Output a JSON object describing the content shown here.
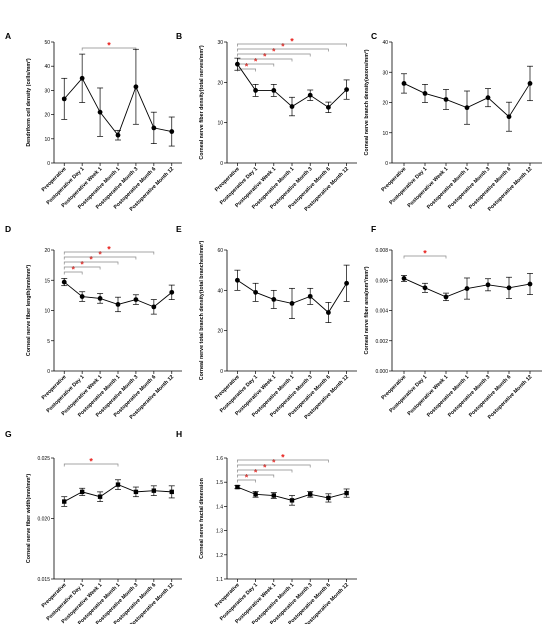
{
  "x_categories": [
    "Preoperative",
    "Postoperative Day 1",
    "Postoperative Week 1",
    "Postoperative Month 1",
    "Postoperative Month 3",
    "Postoperative Month 6",
    "Postoperative Month 12"
  ],
  "colors": {
    "line": "#000000",
    "bracket": "#888888",
    "star": "#e8231f"
  },
  "chart_data": [
    {
      "panel": "A",
      "type": "line",
      "ylabel": "Dendriform cell density (cells/mm²)",
      "ylim": [
        0,
        50
      ],
      "yticks": [
        "0",
        "10",
        "20",
        "30",
        "40",
        "50"
      ],
      "values": [
        26.5,
        35,
        21,
        11.5,
        31.5,
        14.5,
        13
      ],
      "err": [
        8.5,
        10,
        10,
        2,
        15.5,
        6.5,
        6
      ],
      "marker": "circle",
      "sig": [
        [
          1,
          4
        ]
      ]
    },
    {
      "panel": "B",
      "type": "line",
      "ylabel": "Corneal nerve fiber density(total nerves/mm²)",
      "ylim": [
        0,
        30
      ],
      "yticks": [
        "0",
        "10",
        "20",
        "30"
      ],
      "values": [
        24.5,
        18,
        18,
        14,
        16.8,
        13.8,
        18.2
      ],
      "err": [
        1.5,
        1.5,
        1.5,
        2.3,
        1.3,
        1.3,
        2.4
      ],
      "marker": "circle",
      "sig": [
        [
          0,
          1
        ],
        [
          0,
          2
        ],
        [
          0,
          3
        ],
        [
          0,
          4
        ],
        [
          0,
          5
        ],
        [
          0,
          6
        ]
      ]
    },
    {
      "panel": "C",
      "type": "line",
      "ylabel": "Corneal nerve branch density(axons/mm²)",
      "ylim": [
        0,
        40
      ],
      "yticks": [
        "0",
        "10",
        "20",
        "30",
        "40"
      ],
      "values": [
        26.3,
        23,
        21,
        18.3,
        21.6,
        15.3,
        26.3
      ],
      "err": [
        3.2,
        3,
        3.3,
        5.5,
        3,
        4.8,
        5.7
      ],
      "marker": "circle",
      "sig": []
    },
    {
      "panel": "D",
      "type": "line",
      "ylabel": "Corneal nerve fiber length(mm/mm²)",
      "ylim": [
        0,
        20
      ],
      "yticks": [
        "0",
        "5",
        "10",
        "15",
        "20"
      ],
      "values": [
        14.7,
        12.3,
        12,
        11,
        11.8,
        10.6,
        13
      ],
      "err": [
        0.6,
        0.8,
        0.8,
        1.2,
        0.8,
        1.2,
        1.2
      ],
      "marker": "circle",
      "sig": [
        [
          0,
          1
        ],
        [
          0,
          2
        ],
        [
          0,
          3
        ],
        [
          0,
          4
        ],
        [
          0,
          5
        ]
      ]
    },
    {
      "panel": "E",
      "type": "line",
      "ylabel": "Corneal nerve total branch density(total branches/mm²)",
      "ylim": [
        0,
        60
      ],
      "yticks": [
        "0",
        "20",
        "40",
        "60"
      ],
      "values": [
        45,
        39,
        35.5,
        33.5,
        37,
        29,
        43.5
      ],
      "err": [
        5,
        4.5,
        4.5,
        7.5,
        4,
        5,
        9
      ],
      "marker": "circle",
      "sig": []
    },
    {
      "panel": "F",
      "type": "line",
      "ylabel": "Corneal nerve fiber area(mm²/mm²)",
      "ylim": [
        0,
        0.008
      ],
      "yticks": [
        "0.000",
        "0.002",
        "0.004",
        "0.006",
        "0.008"
      ],
      "values": [
        0.00612,
        0.0055,
        0.0049,
        0.00545,
        0.0057,
        0.0055,
        0.00575
      ],
      "err": [
        0.0002,
        0.0003,
        0.00025,
        0.0007,
        0.0004,
        0.0007,
        0.0007
      ],
      "marker": "circle",
      "sig": [
        [
          0,
          2
        ]
      ]
    },
    {
      "panel": "G",
      "type": "line",
      "ylabel": "Corneal nerve fiber width(mm/mm²)",
      "ylim": [
        0.015,
        0.025
      ],
      "yticks": [
        "0.015",
        "0.020",
        "0.025"
      ],
      "values": [
        0.0214,
        0.0222,
        0.0218,
        0.0228,
        0.0222,
        0.0223,
        0.0222
      ],
      "err": [
        0.0004,
        0.0003,
        0.0004,
        0.0004,
        0.0004,
        0.0004,
        0.0005
      ],
      "marker": "square",
      "sig": [
        [
          0,
          3
        ]
      ]
    },
    {
      "panel": "H",
      "type": "line",
      "ylabel": "Corneal nerve fractal dimension",
      "ylim": [
        1.1,
        1.6
      ],
      "yticks": [
        "1.1",
        "1.2",
        "1.3",
        "1.4",
        "1.5",
        "1.6"
      ],
      "values": [
        1.48,
        1.45,
        1.445,
        1.425,
        1.45,
        1.435,
        1.455
      ],
      "err": [
        0.007,
        0.012,
        0.012,
        0.02,
        0.012,
        0.017,
        0.017
      ],
      "marker": "square",
      "sig": [
        [
          0,
          1
        ],
        [
          0,
          2
        ],
        [
          0,
          3
        ],
        [
          0,
          4
        ],
        [
          0,
          5
        ]
      ]
    }
  ]
}
